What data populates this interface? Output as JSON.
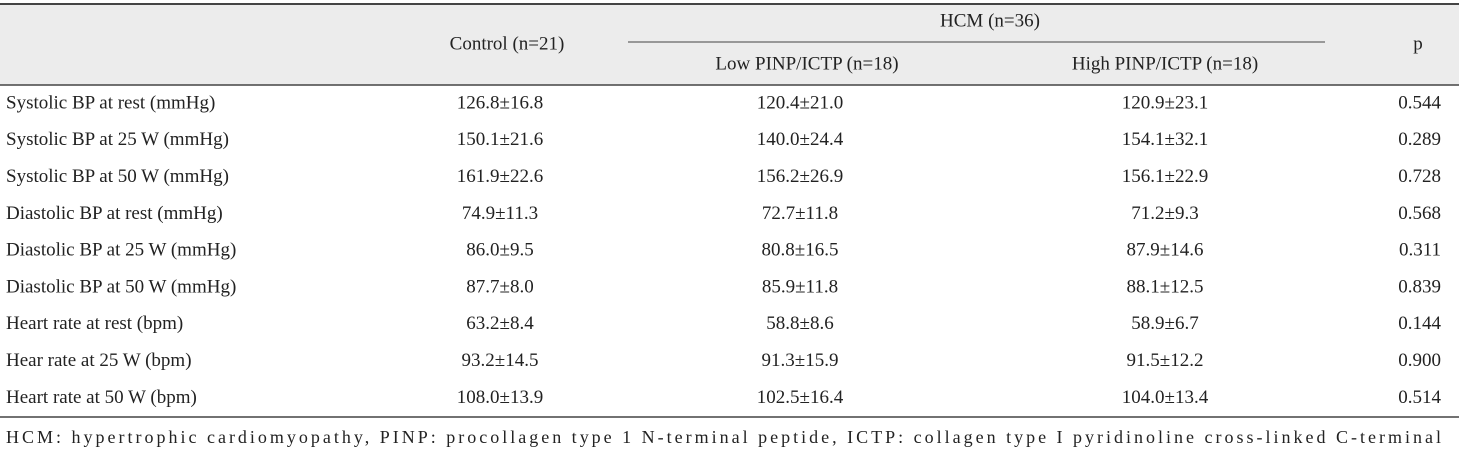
{
  "header": {
    "control": "Control (n=21)",
    "hcm": "HCM (n=36)",
    "low": "Low PINP/ICTP (n=18)",
    "high": "High PINP/ICTP (n=18)",
    "p": "p"
  },
  "table": {
    "rows": [
      [
        "Systolic BP at rest (mmHg)",
        "126.8±16.8",
        "120.4±21.0",
        "120.9±23.1",
        "0.544"
      ],
      [
        "Systolic BP at 25 W (mmHg)",
        "150.1±21.6",
        "140.0±24.4",
        "154.1±32.1",
        "0.289"
      ],
      [
        "Systolic BP at 50 W (mmHg)",
        "161.9±22.6",
        "156.2±26.9",
        "156.1±22.9",
        "0.728"
      ],
      [
        "Diastolic BP at rest (mmHg)",
        "74.9±11.3",
        "72.7±11.8",
        "71.2±9.3",
        "0.568"
      ],
      [
        "Diastolic BP at 25 W (mmHg)",
        "86.0±9.5",
        "80.8±16.5",
        "87.9±14.6",
        "0.311"
      ],
      [
        "Diastolic BP at 50 W (mmHg)",
        "87.7±8.0",
        "85.9±11.8",
        "88.1±12.5",
        "0.839"
      ],
      [
        "Heart rate at rest (bpm)",
        "63.2±8.4",
        "58.8±8.6",
        "58.9±6.7",
        "0.144"
      ],
      [
        "Hear rate at 25 W (bpm)",
        "93.2±14.5",
        "91.3±15.9",
        "91.5±12.2",
        "0.900"
      ],
      [
        "Heart rate at 50 W (bpm)",
        "108.0±13.9",
        "102.5±16.4",
        "104.0±13.4",
        "0.514"
      ]
    ]
  },
  "footnote": "HCM: hypertrophic cardiomyopathy, PINP: procollagen type 1 N-terminal peptide, ICTP: collagen type I pyridinoline cross-linked C-terminal"
}
